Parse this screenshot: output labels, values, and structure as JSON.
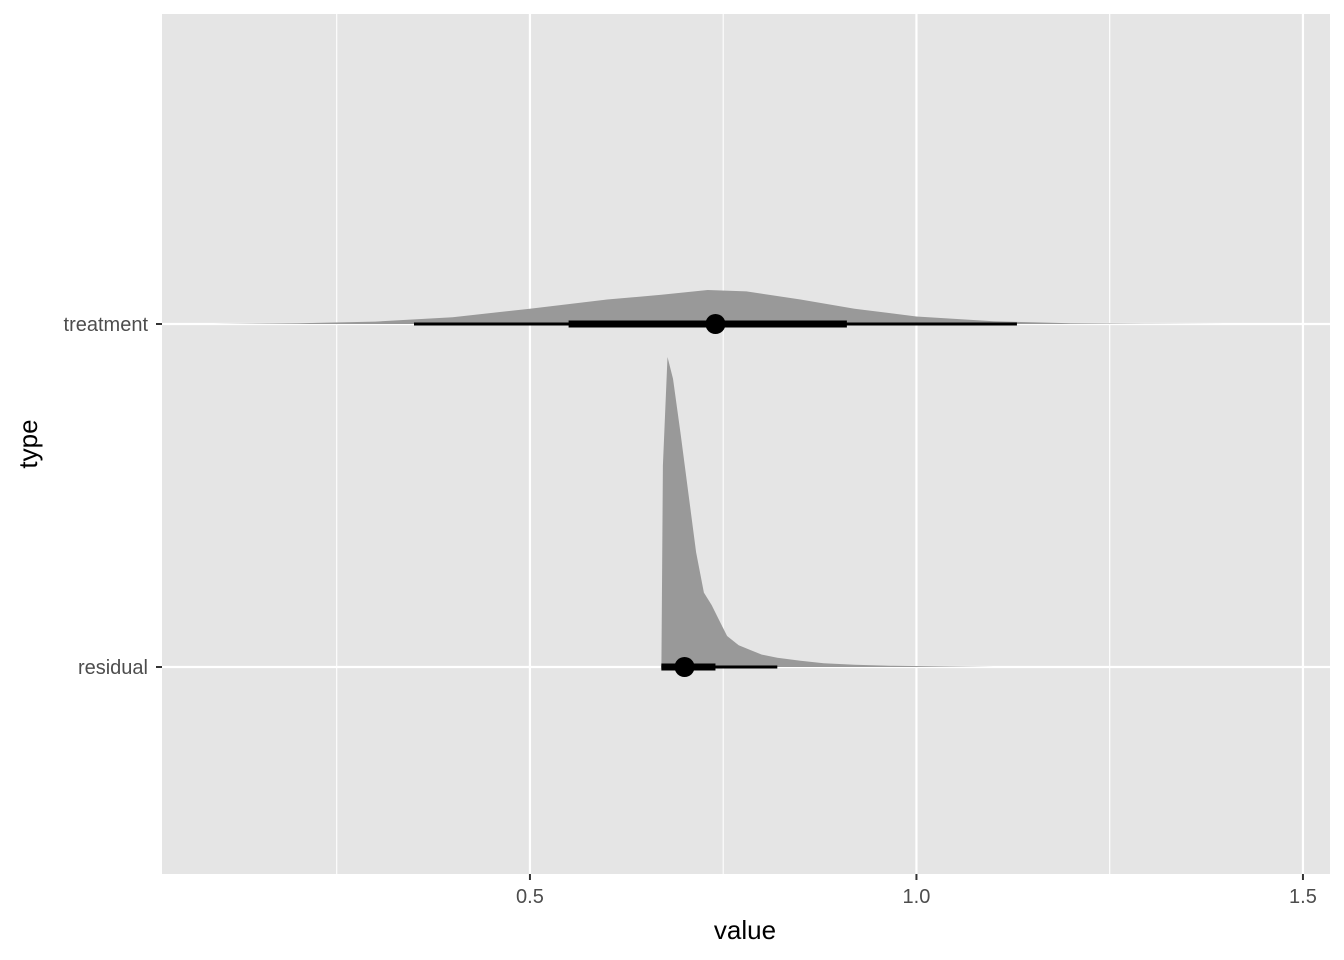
{
  "chart_data": {
    "type": "halfeye",
    "title": "",
    "xlabel": "value",
    "ylabel": "type",
    "xlim": [
      0.024,
      1.535
    ],
    "x_ticks": [
      {
        "value": 0.5,
        "label": "0.5"
      },
      {
        "value": 1.0,
        "label": "1.0"
      },
      {
        "value": 1.5,
        "label": "1.5"
      }
    ],
    "x_minor_ticks": [
      0.25,
      0.75,
      1.25
    ],
    "categories": [
      "treatment",
      "residual"
    ],
    "grid": true,
    "panel_background": "#e5e5e5",
    "grid_color": "#ffffff",
    "density_fill": "#999999",
    "interval_color": "#000000",
    "series": [
      {
        "category": "treatment",
        "point": 0.74,
        "interval_66": [
          0.55,
          0.91
        ],
        "interval_95": [
          0.35,
          1.13
        ],
        "density": {
          "x": [
            0.09,
            0.2,
            0.3,
            0.4,
            0.5,
            0.6,
            0.67,
            0.73,
            0.78,
            0.85,
            0.92,
            1.0,
            1.1,
            1.2,
            1.3,
            1.4
          ],
          "y": [
            0.0,
            0.02,
            0.07,
            0.2,
            0.45,
            0.72,
            0.86,
            1.0,
            0.96,
            0.72,
            0.45,
            0.22,
            0.08,
            0.02,
            0.005,
            0.0
          ]
        }
      },
      {
        "category": "residual",
        "point": 0.7,
        "interval_66": [
          0.67,
          0.74
        ],
        "interval_95": [
          0.67,
          0.82
        ],
        "density": {
          "x": [
            0.67,
            0.672,
            0.678,
            0.685,
            0.695,
            0.705,
            0.715,
            0.725,
            0.735,
            0.745,
            0.755,
            0.77,
            0.785,
            0.8,
            0.82,
            0.85,
            0.88,
            0.92,
            0.97,
            1.03,
            1.1
          ],
          "y": [
            0.0,
            0.65,
            1.0,
            0.93,
            0.75,
            0.56,
            0.37,
            0.24,
            0.2,
            0.15,
            0.1,
            0.07,
            0.055,
            0.04,
            0.03,
            0.02,
            0.012,
            0.007,
            0.004,
            0.002,
            0.0
          ]
        }
      }
    ]
  }
}
